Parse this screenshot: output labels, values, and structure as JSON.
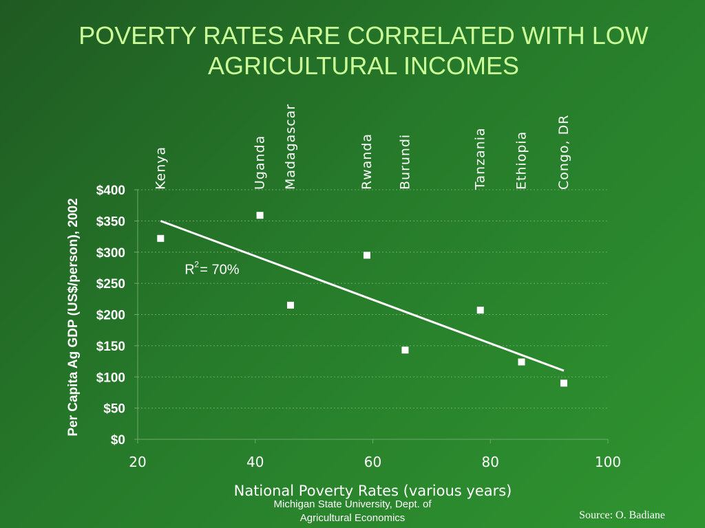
{
  "slide": {
    "title_line1": "POVERTY RATES ARE CORRELATED WITH LOW",
    "title_line2": "AGRICULTURAL INCOMES",
    "footer_credit_line1": "Michigan State University, Dept. of",
    "footer_credit_line2": "Agricultural Economics",
    "source": "Source:  O. Badiane"
  },
  "colors": {
    "title": "#ccff99",
    "text": "#ffffff",
    "grid": "#6fa86f"
  },
  "chart_data": {
    "type": "scatter",
    "xlabel": "National Poverty Rates (various years)",
    "ylabel": "Per Capita Ag GDP (US$/person), 2002",
    "xlim": [
      20,
      100
    ],
    "ylim": [
      0,
      400
    ],
    "x_ticks": [
      20,
      40,
      60,
      80,
      100
    ],
    "y_ticks": [
      0,
      50,
      100,
      150,
      200,
      250,
      300,
      350,
      400
    ],
    "y_tick_labels": [
      "$0",
      "$50",
      "$100",
      "$150",
      "$200",
      "$250",
      "$300",
      "$350",
      "$400"
    ],
    "grid": "horizontal",
    "points": [
      {
        "label": "Kenya",
        "x": 23.9,
        "y": 322
      },
      {
        "label": "Uganda",
        "x": 40.8,
        "y": 359
      },
      {
        "label": "Madagascar",
        "x": 46.0,
        "y": 215
      },
      {
        "label": "Rwanda",
        "x": 59.0,
        "y": 295
      },
      {
        "label": "Burundi",
        "x": 65.5,
        "y": 143
      },
      {
        "label": "Tanzania",
        "x": 78.3,
        "y": 207
      },
      {
        "label": "Ethiopia",
        "x": 85.3,
        "y": 124
      },
      {
        "label": "Congo, DR",
        "x": 92.5,
        "y": 90
      }
    ],
    "trendline": {
      "x": [
        23.9,
        92.5
      ],
      "y": [
        350,
        110
      ]
    },
    "annotation": {
      "text": "R",
      "superscript": "2",
      "suffix": " = 70%",
      "x": 28,
      "y": 265
    }
  }
}
